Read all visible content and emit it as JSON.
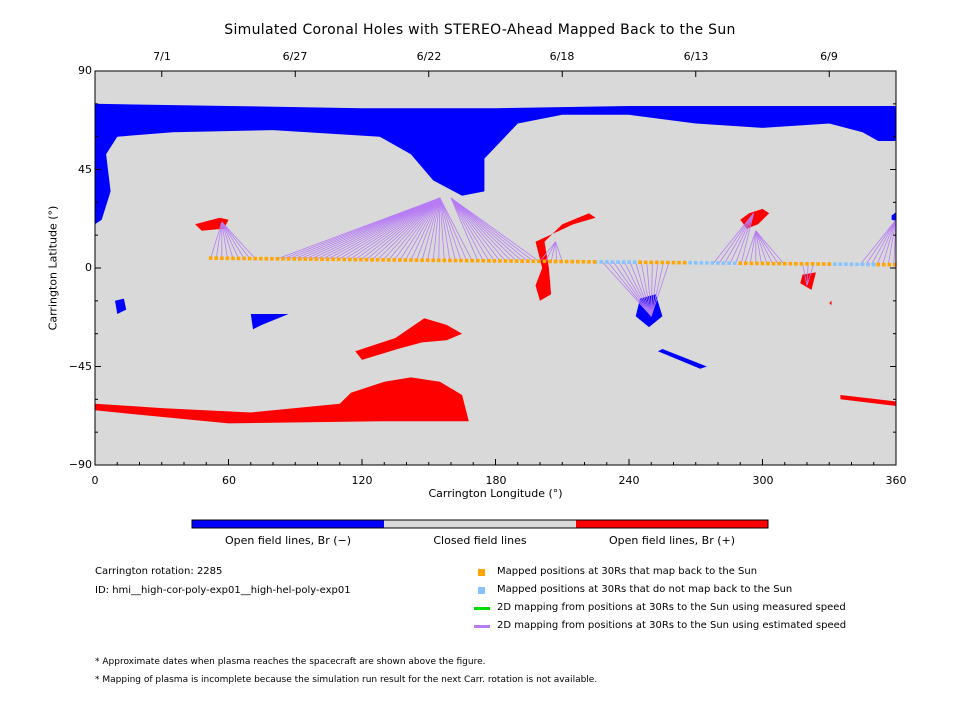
{
  "chart_data": {
    "type": "map",
    "title": "Simulated Coronal Holes with STEREO-Ahead Mapped Back to the Sun",
    "xlabel": "Carrington Longitude (°)",
    "ylabel": "Carrington Latitude (°)",
    "xlim": [
      0,
      360
    ],
    "ylim": [
      -90,
      90
    ],
    "x_ticks": [
      "0",
      "60",
      "120",
      "180",
      "240",
      "300",
      "360"
    ],
    "y_ticks": [
      "90",
      "45",
      "0",
      "−45",
      "−90"
    ],
    "top_axis_dates": [
      {
        "label": "7/1",
        "lon": 30
      },
      {
        "label": "6/27",
        "lon": 90
      },
      {
        "label": "6/22",
        "lon": 150
      },
      {
        "label": "6/18",
        "lon": 210
      },
      {
        "label": "6/13",
        "lon": 270
      },
      {
        "label": "6/9",
        "lon": 330
      }
    ],
    "regions": {
      "negative": [
        [
          [
            0,
            75
          ],
          [
            60,
            74
          ],
          [
            120,
            73
          ],
          [
            180,
            73
          ],
          [
            240,
            74
          ],
          [
            300,
            74
          ],
          [
            340,
            74
          ],
          [
            360,
            74
          ],
          [
            360,
            58
          ],
          [
            352,
            58
          ],
          [
            345,
            62
          ],
          [
            330,
            66
          ],
          [
            300,
            64
          ],
          [
            270,
            66
          ],
          [
            240,
            70
          ],
          [
            210,
            70
          ],
          [
            190,
            66
          ],
          [
            175,
            50
          ],
          [
            175,
            35
          ],
          [
            165,
            33
          ],
          [
            152,
            40
          ],
          [
            142,
            52
          ],
          [
            128,
            60
          ],
          [
            80,
            63
          ],
          [
            35,
            62
          ],
          [
            10,
            60
          ],
          [
            5,
            52
          ],
          [
            7,
            35
          ],
          [
            3,
            22
          ],
          [
            0,
            20
          ]
        ],
        [
          [
            9,
            -15
          ],
          [
            13,
            -14
          ],
          [
            14,
            -19
          ],
          [
            10,
            -21
          ]
        ],
        [
          [
            245,
            -14
          ],
          [
            252,
            -12
          ],
          [
            255,
            -22
          ],
          [
            249,
            -27
          ],
          [
            243,
            -22
          ]
        ],
        [
          [
            70,
            -21
          ],
          [
            87,
            -21
          ],
          [
            75,
            -26
          ],
          [
            71,
            -28
          ]
        ],
        [
          [
            255,
            -37
          ],
          [
            275,
            -45
          ],
          [
            272,
            -46
          ],
          [
            253,
            -38
          ]
        ],
        [
          [
            358,
            24
          ],
          [
            362,
            27
          ],
          [
            362,
            21
          ],
          [
            358,
            22
          ]
        ]
      ],
      "positive": [
        [
          [
            45,
            20
          ],
          [
            56,
            23
          ],
          [
            60,
            22
          ],
          [
            58,
            18
          ],
          [
            48,
            17
          ]
        ],
        [
          [
            198,
            12
          ],
          [
            215,
            20
          ],
          [
            225,
            23
          ],
          [
            222,
            25
          ],
          [
            210,
            20
          ],
          [
            202,
            12
          ],
          [
            204,
            0
          ],
          [
            205,
            -12
          ],
          [
            200,
            -15
          ],
          [
            198,
            -8
          ],
          [
            201,
            0
          ]
        ],
        [
          [
            294,
            25
          ],
          [
            300,
            27
          ],
          [
            303,
            25
          ],
          [
            298,
            20
          ],
          [
            293,
            18
          ],
          [
            290,
            22
          ]
        ],
        [
          [
            318,
            -3
          ],
          [
            324,
            -2
          ],
          [
            322,
            -10
          ],
          [
            317,
            -7
          ]
        ],
        [
          [
            117,
            -38
          ],
          [
            135,
            -32
          ],
          [
            148,
            -23
          ],
          [
            158,
            -26
          ],
          [
            165,
            -30
          ],
          [
            158,
            -33
          ],
          [
            147,
            -34
          ],
          [
            136,
            -37
          ],
          [
            120,
            -42
          ]
        ],
        [
          [
            115,
            -57
          ],
          [
            130,
            -52
          ],
          [
            142,
            -50
          ],
          [
            155,
            -52
          ],
          [
            165,
            -58
          ],
          [
            168,
            -70
          ],
          [
            130,
            -70
          ],
          [
            60,
            -71
          ],
          [
            20,
            -67
          ],
          [
            0,
            -65
          ],
          [
            0,
            -62
          ],
          [
            30,
            -64
          ],
          [
            70,
            -66
          ],
          [
            110,
            -62
          ]
        ],
        [
          [
            335,
            -58
          ],
          [
            360,
            -61
          ],
          [
            360,
            -63
          ],
          [
            335,
            -60
          ]
        ],
        [
          [
            330,
            -16
          ],
          [
            331,
            -17
          ],
          [
            331,
            -15
          ]
        ]
      ]
    },
    "mapped_positions": {
      "orange_lon_ranges": [
        [
          52,
          225
        ],
        [
          245,
          265
        ],
        [
          290,
          330
        ],
        [
          352,
          360
        ]
      ],
      "blue_lon_ranges": [
        [
          225,
          245
        ],
        [
          265,
          290
        ],
        [
          330,
          352
        ]
      ],
      "lat_at_0": 5,
      "lat_at_360": 1.5,
      "step_deg": 2.5
    },
    "connections": [
      {
        "from_lon": [
          52,
          72
        ],
        "to": [
          57,
          21
        ]
      },
      {
        "from_lon": [
          82,
          170
        ],
        "to": [
          155,
          32
        ]
      },
      {
        "from_lon": [
          172,
          200
        ],
        "to": [
          160,
          32
        ]
      },
      {
        "from_lon": [
          200,
          210
        ],
        "to": [
          207,
          12
        ]
      },
      {
        "from_lon": [
          228,
          260
        ],
        "to": [
          250,
          -22
        ]
      },
      {
        "from_lon": [
          278,
          292
        ],
        "to": [
          296,
          25
        ]
      },
      {
        "from_lon": [
          292,
          310
        ],
        "to": [
          297,
          17
        ]
      },
      {
        "from_lon": [
          318,
          325
        ],
        "to": [
          320,
          -8
        ]
      },
      {
        "from_lon": [
          344,
          360
        ],
        "to": [
          360,
          22
        ]
      }
    ],
    "colorbar": {
      "colors": [
        "#0000ff",
        "#d9d9d9",
        "#ff0000"
      ],
      "labels": [
        "Open field lines, Br (−)",
        "Closed field lines",
        "Open field lines, Br (+)"
      ]
    },
    "colors": {
      "background": "#d9d9d9",
      "negative": "#0000ff",
      "positive": "#ff0000",
      "mapped": "#ffa500",
      "unmapped": "#87c4ff",
      "measured": "#00dd00",
      "estimated": "#b77cf5"
    }
  },
  "info": {
    "rotation": "Carrington rotation: 2285",
    "id": "ID: hmi__high-cor-poly-exp01__high-hel-poly-exp01"
  },
  "legend": [
    {
      "marker": "square-orange",
      "text": "Mapped positions at 30Rs that map back to the Sun"
    },
    {
      "marker": "square-blue",
      "text": "Mapped positions at 30Rs that do not map back to the Sun"
    },
    {
      "marker": "line-green",
      "text": "2D mapping from positions at 30Rs to the Sun using measured speed"
    },
    {
      "marker": "line-purple",
      "text": "2D mapping from positions at 30Rs to the Sun using estimated speed"
    }
  ],
  "notes": [
    "* Approximate dates when plasma reaches the spacecraft are shown above the figure.",
    "* Mapping of plasma is incomplete because the simulation run result for the next Carr. rotation is not available."
  ]
}
